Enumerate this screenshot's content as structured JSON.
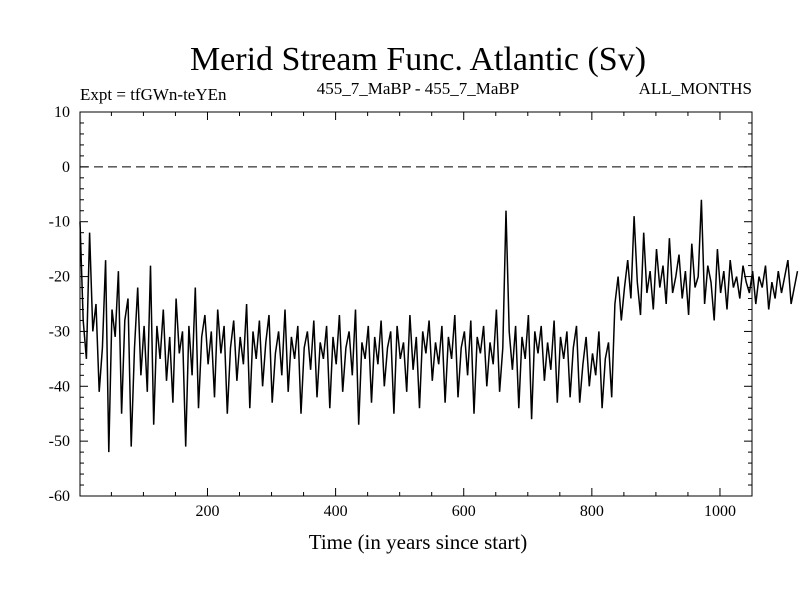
{
  "chart_data": {
    "type": "line",
    "title": "Merid Stream Func. Atlantic (Sv)",
    "header_left": "Expt = tfGWn-teYEn",
    "header_center": "455_7_MaBP - 455_7_MaBP",
    "header_right": "ALL_MONTHS",
    "xlabel": "Time (in years since start)",
    "ylabel": "",
    "xlim": [
      1,
      1050
    ],
    "ylim": [
      -60,
      10
    ],
    "xticks": [
      200,
      400,
      600,
      800,
      1000
    ],
    "xtick_labels": [
      "200",
      "400",
      "600",
      "800",
      "1000"
    ],
    "yticks": [
      10,
      0,
      -10,
      -20,
      -30,
      -40,
      -50,
      -60
    ],
    "ytick_labels": [
      "10",
      "0",
      "-10",
      "-20",
      "-30",
      "-40",
      "-50",
      "-60"
    ],
    "reference_line": {
      "y": 0,
      "style": "dashed"
    },
    "series": [
      {
        "name": "Merid Stream Func. Atlantic",
        "x_start": 1,
        "x_step": 5,
        "values": [
          -10,
          -28,
          -35,
          -12,
          -30,
          -25,
          -41,
          -33,
          -17,
          -52,
          -26,
          -31,
          -19,
          -45,
          -28,
          -24,
          -51,
          -33,
          -22,
          -38,
          -29,
          -41,
          -18,
          -47,
          -29,
          -35,
          -26,
          -39,
          -31,
          -43,
          -24,
          -34,
          -30,
          -51,
          -29,
          -38,
          -22,
          -44,
          -31,
          -27,
          -36,
          -30,
          -42,
          -26,
          -34,
          -29,
          -45,
          -33,
          -28,
          -39,
          -31,
          -36,
          -25,
          -44,
          -30,
          -35,
          -28,
          -40,
          -32,
          -27,
          -43,
          -34,
          -30,
          -38,
          -26,
          -41,
          -31,
          -35,
          -29,
          -45,
          -33,
          -30,
          -37,
          -28,
          -42,
          -32,
          -35,
          -29,
          -44,
          -31,
          -36,
          -27,
          -41,
          -33,
          -30,
          -38,
          -26,
          -47,
          -32,
          -35,
          -29,
          -43,
          -31,
          -36,
          -28,
          -40,
          -33,
          -30,
          -45,
          -29,
          -35,
          -32,
          -41,
          -27,
          -37,
          -31,
          -44,
          -30,
          -34,
          -28,
          -39,
          -32,
          -36,
          -29,
          -43,
          -31,
          -35,
          -27,
          -42,
          -33,
          -30,
          -38,
          -28,
          -45,
          -31,
          -34,
          -29,
          -40,
          -32,
          -36,
          -26,
          -41,
          -33,
          -8,
          -30,
          -37,
          -29,
          -44,
          -31,
          -35,
          -27,
          -46,
          -30,
          -34,
          -29,
          -39,
          -32,
          -37,
          -28,
          -43,
          -31,
          -35,
          -30,
          -42,
          -33,
          -29,
          -43,
          -36,
          -31,
          -40,
          -34,
          -38,
          -30,
          -44,
          -35,
          -32,
          -42,
          -25,
          -20,
          -28,
          -22,
          -17,
          -24,
          -9,
          -21,
          -27,
          -12,
          -23,
          -19,
          -26,
          -15,
          -22,
          -18,
          -25,
          -13,
          -23,
          -20,
          -16,
          -24,
          -19,
          -27,
          -14,
          -22,
          -20,
          -6,
          -25,
          -18,
          -21,
          -28,
          -15,
          -23,
          -19,
          -26,
          -17,
          -22,
          -20,
          -24,
          -18,
          -21,
          -23,
          -19,
          -25,
          -20,
          -22,
          -18,
          -26,
          -21,
          -24,
          -19,
          -23,
          -20,
          -17,
          -25,
          -22,
          -19
        ]
      }
    ]
  }
}
